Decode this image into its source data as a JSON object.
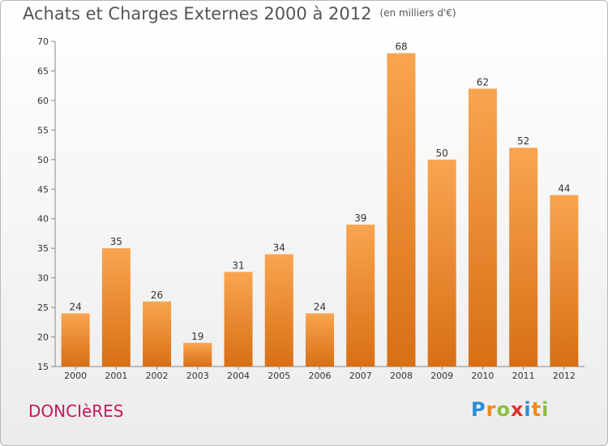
{
  "chart_data": {
    "type": "bar",
    "title": "Achats et Charges Externes 2000 à 2012",
    "unit": "(en milliers d'€)",
    "categories": [
      "2000",
      "2001",
      "2002",
      "2003",
      "2004",
      "2005",
      "2006",
      "2007",
      "2008",
      "2009",
      "2010",
      "2011",
      "2012"
    ],
    "values": [
      24,
      35,
      26,
      19,
      31,
      34,
      24,
      39,
      68,
      50,
      62,
      52,
      44
    ],
    "ylim": [
      15,
      70
    ],
    "yticks": [
      15,
      20,
      25,
      30,
      35,
      40,
      45,
      50,
      55,
      60,
      65,
      70
    ],
    "grid": false,
    "bar_color_top": "#f9a54f",
    "bar_color_bottom": "#d86f15"
  },
  "footer": {
    "commune": "DONCIèRES",
    "logo_letters": [
      "P",
      "r",
      "o",
      "x",
      "i",
      "t",
      "i"
    ],
    "logo_colors": [
      "#2c8fd6",
      "#f08a1c",
      "#8bc13b",
      "#e2312a",
      "#2c8fd6",
      "#f08a1c",
      "#8bc13b"
    ]
  }
}
